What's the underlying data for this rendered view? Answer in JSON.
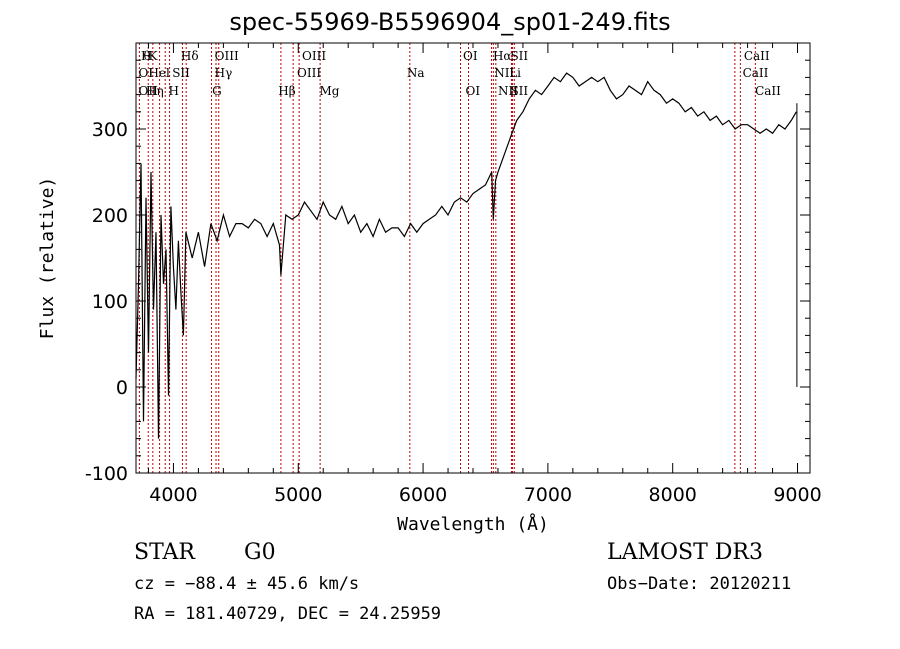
{
  "chart_data": {
    "type": "line",
    "title": "spec-55969-B5596904_sp01-249.fits",
    "xlabel": "Wavelength (Å)",
    "ylabel": "Flux (relative)",
    "xlim": [
      3700,
      9100
    ],
    "ylim": [
      -100,
      400
    ],
    "xticks": [
      4000,
      5000,
      6000,
      7000,
      8000,
      9000
    ],
    "yticks": [
      -100,
      0,
      100,
      200,
      300
    ],
    "series": [
      {
        "name": "flux",
        "x": [
          3700,
          3720,
          3740,
          3760,
          3780,
          3800,
          3820,
          3840,
          3860,
          3880,
          3900,
          3920,
          3940,
          3960,
          3980,
          4000,
          4020,
          4040,
          4060,
          4080,
          4100,
          4150,
          4200,
          4250,
          4300,
          4350,
          4400,
          4450,
          4500,
          4550,
          4600,
          4650,
          4700,
          4750,
          4800,
          4850,
          4861,
          4900,
          4950,
          5000,
          5050,
          5100,
          5150,
          5200,
          5250,
          5300,
          5350,
          5400,
          5450,
          5500,
          5550,
          5600,
          5650,
          5700,
          5750,
          5800,
          5850,
          5900,
          5950,
          6000,
          6050,
          6100,
          6150,
          6200,
          6250,
          6300,
          6350,
          6400,
          6450,
          6500,
          6550,
          6563,
          6580,
          6600,
          6650,
          6700,
          6750,
          6800,
          6850,
          6900,
          6950,
          7000,
          7050,
          7100,
          7150,
          7200,
          7250,
          7300,
          7350,
          7400,
          7450,
          7500,
          7550,
          7600,
          7650,
          7700,
          7750,
          7800,
          7850,
          7900,
          7950,
          8000,
          8050,
          8100,
          8150,
          8200,
          8250,
          8300,
          8350,
          8400,
          8450,
          8500,
          8550,
          8600,
          8650,
          8700,
          8750,
          8800,
          8850,
          8900,
          8950,
          8990
        ],
        "values": [
          10,
          120,
          260,
          -40,
          220,
          40,
          250,
          90,
          180,
          -60,
          200,
          120,
          160,
          -10,
          210,
          140,
          90,
          170,
          110,
          60,
          180,
          150,
          180,
          140,
          190,
          170,
          200,
          175,
          190,
          190,
          185,
          195,
          190,
          175,
          190,
          165,
          130,
          200,
          195,
          200,
          215,
          205,
          195,
          215,
          200,
          195,
          210,
          190,
          200,
          180,
          190,
          175,
          195,
          180,
          185,
          185,
          175,
          190,
          180,
          190,
          195,
          200,
          210,
          200,
          215,
          220,
          215,
          225,
          230,
          235,
          250,
          195,
          240,
          250,
          270,
          290,
          310,
          320,
          335,
          345,
          340,
          350,
          360,
          355,
          365,
          360,
          350,
          355,
          360,
          355,
          360,
          345,
          335,
          340,
          350,
          345,
          340,
          355,
          345,
          340,
          330,
          335,
          330,
          320,
          325,
          315,
          320,
          310,
          315,
          305,
          310,
          300,
          305,
          305,
          300,
          295,
          300,
          295,
          305,
          300,
          310,
          320
        ]
      }
    ],
    "lines": [
      {
        "name": "CaII K",
        "x": 3934
      },
      {
        "name": "CaII H",
        "x": 3969
      },
      {
        "name": "He",
        "x": 3889
      },
      {
        "name": "H delta",
        "x": 4102
      },
      {
        "name": "H gamma",
        "x": 4341
      },
      {
        "name": "G",
        "x": 4305
      },
      {
        "name": "OIII",
        "x": 4363
      },
      {
        "name": "H beta",
        "x": 4861
      },
      {
        "name": "OIII",
        "x": 4959
      },
      {
        "name": "OIII",
        "x": 5007
      },
      {
        "name": "Mg",
        "x": 5175
      },
      {
        "name": "Na",
        "x": 5894
      },
      {
        "name": "OI",
        "x": 6300
      },
      {
        "name": "OI",
        "x": 6364
      },
      {
        "name": "NII",
        "x": 6548
      },
      {
        "name": "H alpha",
        "x": 6563
      },
      {
        "name": "NII",
        "x": 6583
      },
      {
        "name": "Li",
        "x": 6708
      },
      {
        "name": "SII",
        "x": 6717
      },
      {
        "name": "SII",
        "x": 6731
      },
      {
        "name": "CaII",
        "x": 8498
      },
      {
        "name": "CaII",
        "x": 8542
      },
      {
        "name": "CaII",
        "x": 8662
      },
      {
        "name": "OII",
        "x": 3727
      },
      {
        "name": "H eta",
        "x": 3835
      },
      {
        "name": "H theta",
        "x": 3798
      },
      {
        "name": "SII",
        "x": 4072
      }
    ],
    "line_labels": [
      {
        "text": "H",
        "x": 3740,
        "row": 1
      },
      {
        "text": "θ",
        "x": 3760,
        "row": 1
      },
      {
        "text": "K",
        "x": 3800,
        "row": 1
      },
      {
        "text": "Hδ",
        "x": 4060,
        "row": 1
      },
      {
        "text": "OIII",
        "x": 4330,
        "row": 1
      },
      {
        "text": "OIII",
        "x": 5030,
        "row": 1
      },
      {
        "text": "OI",
        "x": 6320,
        "row": 1
      },
      {
        "text": "Hα",
        "x": 6560,
        "row": 1
      },
      {
        "text": "SII",
        "x": 6700,
        "row": 1
      },
      {
        "text": "CaII",
        "x": 8570,
        "row": 1
      },
      {
        "text": "OI",
        "x": 3720,
        "row": 2
      },
      {
        "text": "Hel",
        "x": 3800,
        "row": 2
      },
      {
        "text": "SII",
        "x": 3990,
        "row": 2
      },
      {
        "text": "Hγ",
        "x": 4330,
        "row": 2
      },
      {
        "text": "OIII",
        "x": 4990,
        "row": 2
      },
      {
        "text": "Na",
        "x": 5870,
        "row": 2
      },
      {
        "text": "NII",
        "x": 6570,
        "row": 2
      },
      {
        "text": "Li",
        "x": 6690,
        "row": 2
      },
      {
        "text": "CaII",
        "x": 8560,
        "row": 2
      },
      {
        "text": "OII",
        "x": 3720,
        "row": 3
      },
      {
        "text": "Hη",
        "x": 3780,
        "row": 3
      },
      {
        "text": "H",
        "x": 3960,
        "row": 3
      },
      {
        "text": "G",
        "x": 4310,
        "row": 3
      },
      {
        "text": "Hβ",
        "x": 4840,
        "row": 3
      },
      {
        "text": "Mg",
        "x": 5170,
        "row": 3
      },
      {
        "text": "OI",
        "x": 6340,
        "row": 3
      },
      {
        "text": "NII",
        "x": 6600,
        "row": 3
      },
      {
        "text": "SII",
        "x": 6700,
        "row": 3
      },
      {
        "text": "CaII",
        "x": 8660,
        "row": 3
      }
    ]
  },
  "info": {
    "class": "STAR",
    "subclass": "G0",
    "survey": "LAMOST DR3",
    "cz": "cz = −88.4 ± 45.6 km/s",
    "obs_date": "Obs−Date: 20120211",
    "coords": "RA = 181.40729, DEC =  24.25959"
  }
}
